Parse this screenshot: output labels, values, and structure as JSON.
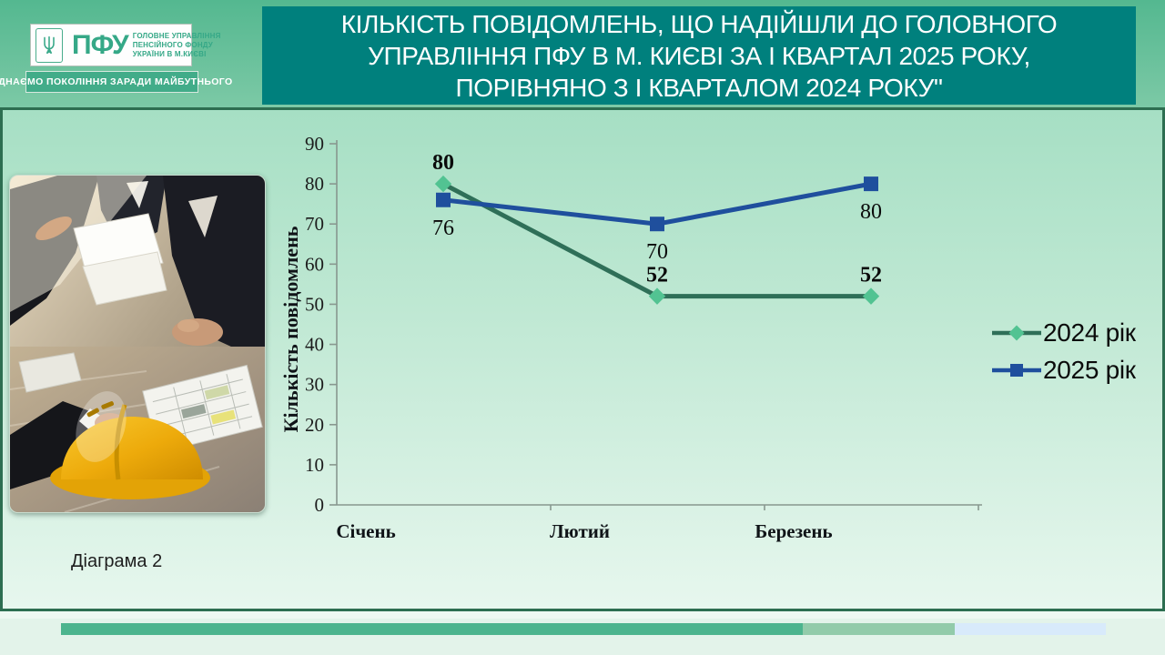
{
  "header": {
    "logo": {
      "abbr": "ПФУ",
      "org_lines": [
        "ГОЛОВНЕ УПРАВЛІННЯ",
        "ПЕНСІЙНОГО ФОНДУ",
        "УКРАЇНИ В М.КИЄВІ"
      ],
      "slogan": "ЄДНАЄМО ПОКОЛІННЯ ЗАРАДИ МАЙБУТНЬОГО"
    },
    "title_lines": [
      "КІЛЬКІСТЬ ПОВІДОМЛЕНЬ, ЩО НАДІЙШЛИ ДО ГОЛОВНОГО",
      "УПРАВЛІННЯ ПФУ В М. КИЄВІ ЗА І КВАРТАЛ 2025 РОКУ,",
      "ПОРІВНЯНО З І КВАРТАЛОМ 2024 РОКУ\""
    ]
  },
  "chart_data": {
    "type": "line",
    "categories": [
      "Січень",
      "Лютий",
      "Березень"
    ],
    "series": [
      {
        "name": "2024 рік",
        "values": [
          80,
          52,
          52
        ],
        "line_color": "#2f6f58",
        "marker": "diamond",
        "marker_color": "#52c392",
        "label_style": "bold",
        "label_position": "above"
      },
      {
        "name": "2025 рік",
        "values": [
          76,
          70,
          80
        ],
        "line_color": "#1f4f9d",
        "marker": "square",
        "marker_color": "#1f4f9d",
        "label_style": "normal",
        "label_position": "below"
      }
    ],
    "title": "",
    "xlabel": "",
    "ylabel": "Кількість повідомлень",
    "ylim": [
      0,
      90
    ],
    "ytick_step": 10,
    "grid": false,
    "legend_position": "right"
  },
  "caption": "Діаграма 2",
  "colors": {
    "header_teal": "#00807d",
    "panel_green": "#5cbd95",
    "board_border": "#2d6e51",
    "series_2024": "#2f6f58",
    "series_2024_marker": "#52c392",
    "series_2025": "#1f4f9d",
    "footer_bar_green": "#4cb48e",
    "footer_bar_lightgreen": "#92cbaa",
    "footer_bar_blue": "#d8eafb"
  }
}
